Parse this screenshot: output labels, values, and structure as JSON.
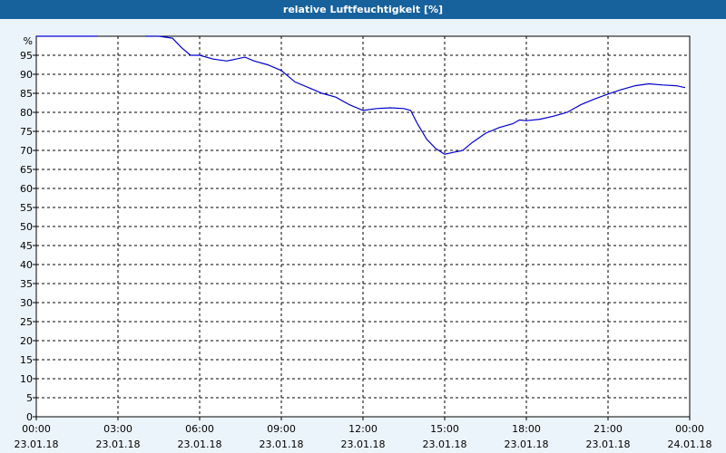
{
  "header": {
    "title": "relative Luftfeuchtigkeit [%]"
  },
  "chart_data": {
    "type": "line",
    "title": "relative Luftfeuchtigkeit [%]",
    "ylabel": "%",
    "xlabel": "",
    "ylim": [
      0,
      100
    ],
    "y_ticks": [
      0,
      5,
      10,
      15,
      20,
      25,
      30,
      35,
      40,
      45,
      50,
      55,
      60,
      65,
      70,
      75,
      80,
      85,
      90,
      95
    ],
    "x_ticks": [
      {
        "time": "00:00",
        "date": "23.01.18"
      },
      {
        "time": "03:00",
        "date": "23.01.18"
      },
      {
        "time": "06:00",
        "date": "23.01.18"
      },
      {
        "time": "09:00",
        "date": "23.01.18"
      },
      {
        "time": "12:00",
        "date": "23.01.18"
      },
      {
        "time": "15:00",
        "date": "23.01.18"
      },
      {
        "time": "18:00",
        "date": "23.01.18"
      },
      {
        "time": "21:00",
        "date": "23.01.18"
      },
      {
        "time": "00:00",
        "date": "24.01.18"
      }
    ],
    "grid": true,
    "series": [
      {
        "color": "#0000cc",
        "segments": [
          {
            "x": [
              "23.01.18 00:00",
              "23.01.18 02:15"
            ],
            "y": [
              100,
              100
            ]
          },
          {
            "x": [
              "23.01.18 04:00",
              "23.01.18 04:30",
              "23.01.18 05:00",
              "23.01.18 05:20",
              "23.01.18 05:40",
              "23.01.18 06:00",
              "23.01.18 06:30",
              "23.01.18 07:00",
              "23.01.18 07:20",
              "23.01.18 07:40",
              "23.01.18 08:00",
              "23.01.18 08:30",
              "23.01.18 09:00",
              "23.01.18 09:30",
              "23.01.18 10:00",
              "23.01.18 10:30",
              "23.01.18 11:00",
              "23.01.18 11:30",
              "23.01.18 12:00",
              "23.01.18 12:30",
              "23.01.18 13:00",
              "23.01.18 13:30",
              "23.01.18 13:45",
              "23.01.18 14:00",
              "23.01.18 14:20",
              "23.01.18 14:40",
              "23.01.18 15:00",
              "23.01.18 15:20",
              "23.01.18 15:40",
              "23.01.18 16:00",
              "23.01.18 16:30",
              "23.01.18 17:00",
              "23.01.18 17:30",
              "23.01.18 17:45",
              "23.01.18 18:00",
              "23.01.18 18:30",
              "23.01.18 19:00",
              "23.01.18 19:30",
              "23.01.18 20:00",
              "23.01.18 20:30",
              "23.01.18 21:00",
              "23.01.18 21:30",
              "23.01.18 22:00",
              "23.01.18 22:30",
              "23.01.18 23:00",
              "23.01.18 23:30",
              "23.01.18 23:50"
            ],
            "y": [
              100,
              100,
              99.5,
              97,
              95,
              95,
              94,
              93.5,
              94,
              94.5,
              93.5,
              92.5,
              91,
              88,
              86.5,
              85,
              84,
              82,
              80.5,
              81,
              81.2,
              81,
              80.5,
              77,
              73,
              70.5,
              69,
              69.5,
              70,
              72,
              74.5,
              76,
              77,
              78,
              77.8,
              78.2,
              79,
              80,
              82,
              83.5,
              84.8,
              86,
              87,
              87.5,
              87.2,
              87,
              86.5
            ]
          }
        ]
      }
    ]
  }
}
